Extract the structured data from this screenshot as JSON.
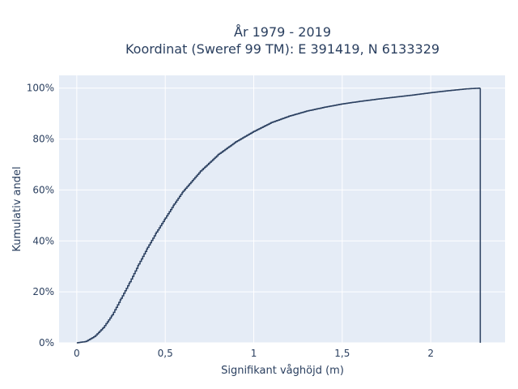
{
  "chart_data": {
    "type": "line",
    "subtype": "cumulative-step",
    "title_line1": "År 1979 - 2019",
    "title_line2": "Koordinat (Sweref 99 TM): E 391419, N 6133329",
    "xlabel": "Signifikant våghöjd (m)",
    "ylabel": "Kumulativ andel",
    "xlim": [
      -0.1,
      2.42
    ],
    "ylim": [
      0,
      1.05
    ],
    "x_ticks": [
      0,
      0.5,
      1,
      1.5,
      2
    ],
    "x_tick_labels": [
      "0",
      "0,5",
      "1",
      "1,5",
      "2"
    ],
    "y_ticks": [
      0,
      0.2,
      0.4,
      0.6,
      0.8,
      1.0
    ],
    "y_tick_labels": [
      "0%",
      "20%",
      "40%",
      "60%",
      "80%",
      "100%"
    ],
    "grid": true,
    "background_color": "#e5ecf6",
    "line_color": "#2a3f5f",
    "points": [
      {
        "x": 0.0,
        "y": 0.0
      },
      {
        "x": 0.05,
        "y": 0.005
      },
      {
        "x": 0.1,
        "y": 0.025
      },
      {
        "x": 0.15,
        "y": 0.06
      },
      {
        "x": 0.2,
        "y": 0.11
      },
      {
        "x": 0.25,
        "y": 0.175
      },
      {
        "x": 0.3,
        "y": 0.24
      },
      {
        "x": 0.35,
        "y": 0.31
      },
      {
        "x": 0.4,
        "y": 0.375
      },
      {
        "x": 0.45,
        "y": 0.435
      },
      {
        "x": 0.5,
        "y": 0.49
      },
      {
        "x": 0.55,
        "y": 0.545
      },
      {
        "x": 0.6,
        "y": 0.595
      },
      {
        "x": 0.7,
        "y": 0.675
      },
      {
        "x": 0.8,
        "y": 0.74
      },
      {
        "x": 0.9,
        "y": 0.79
      },
      {
        "x": 1.0,
        "y": 0.83
      },
      {
        "x": 1.1,
        "y": 0.865
      },
      {
        "x": 1.2,
        "y": 0.89
      },
      {
        "x": 1.3,
        "y": 0.91
      },
      {
        "x": 1.4,
        "y": 0.925
      },
      {
        "x": 1.5,
        "y": 0.938
      },
      {
        "x": 1.6,
        "y": 0.948
      },
      {
        "x": 1.7,
        "y": 0.957
      },
      {
        "x": 1.8,
        "y": 0.965
      },
      {
        "x": 1.9,
        "y": 0.973
      },
      {
        "x": 2.0,
        "y": 0.982
      },
      {
        "x": 2.1,
        "y": 0.99
      },
      {
        "x": 2.2,
        "y": 0.997
      },
      {
        "x": 2.28,
        "y": 1.0
      }
    ],
    "x_end": 2.28
  }
}
